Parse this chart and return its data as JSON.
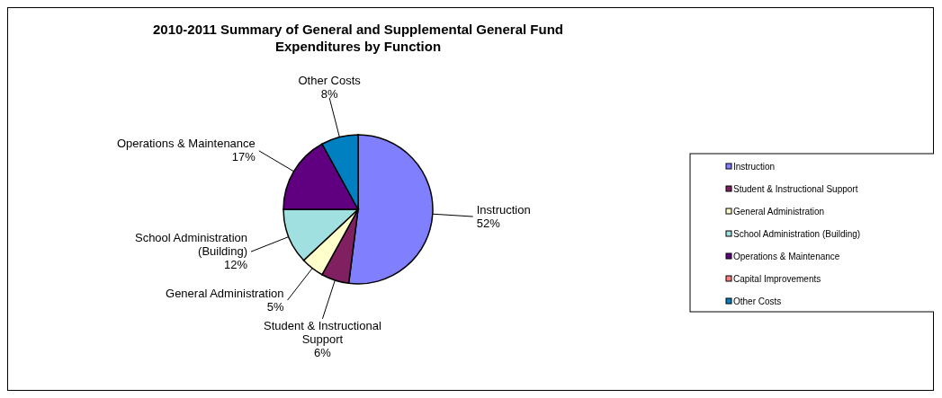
{
  "chart_data": {
    "type": "pie",
    "title": "2010-2011 Summary of General and Supplemental General Fund Expenditures by Function",
    "categories": [
      "Instruction",
      "Student & Instructional Support",
      "General Administration",
      "School Administration (Building)",
      "Operations & Maintenance",
      "Capital Improvements",
      "Other Costs"
    ],
    "values": [
      52,
      6,
      5,
      12,
      17,
      0,
      8
    ],
    "value_labels": [
      "52%",
      "6%",
      "5%",
      "12%",
      "17%",
      null,
      "8%"
    ],
    "colors": [
      "#8080ff",
      "#802060",
      "#ffffcc",
      "#a0e0e0",
      "#600080",
      "#ff8080",
      "#0080c0"
    ],
    "legend": "right"
  }
}
